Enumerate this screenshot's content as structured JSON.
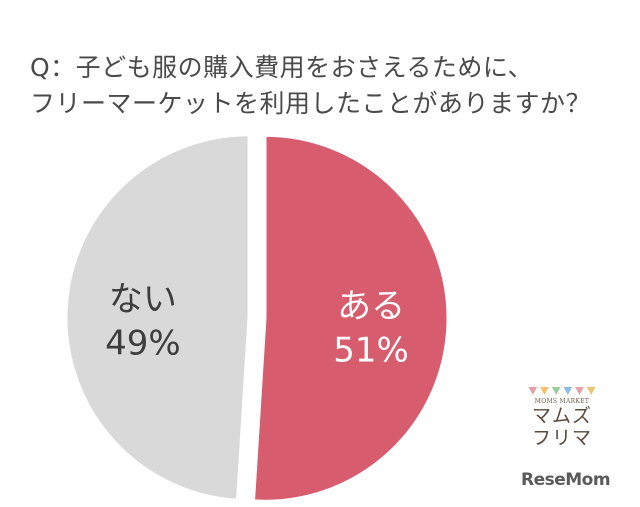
{
  "question": {
    "line1": "Q：子ども服の購入費用をおさえるために、",
    "line2": "フリーマーケットを利用したことがありますか？"
  },
  "chart_data": {
    "type": "pie",
    "title": "Q：子ども服の購入費用をおさえるために、フリーマーケットを利用したことがありますか？",
    "slices": [
      {
        "label": "ある",
        "value": 51,
        "display": "51%",
        "color": "#d65c6e",
        "text_color": "#ffffff"
      },
      {
        "label": "ない",
        "value": 49,
        "display": "49%",
        "color": "#d9d9d9",
        "text_color": "#3d3d3d"
      }
    ],
    "start": "top",
    "direction": "clockwise",
    "exploded": true
  },
  "logo": {
    "sub": "MOMS MARKET",
    "main_line1": "マムズ",
    "main_line2": "フリマ",
    "flag_colors": [
      "#e8a0a8",
      "#f0c36a",
      "#9fc8a2",
      "#8fbde0",
      "#e8a0a8",
      "#f0c36a"
    ]
  },
  "watermark": {
    "text": "ReseMom"
  }
}
